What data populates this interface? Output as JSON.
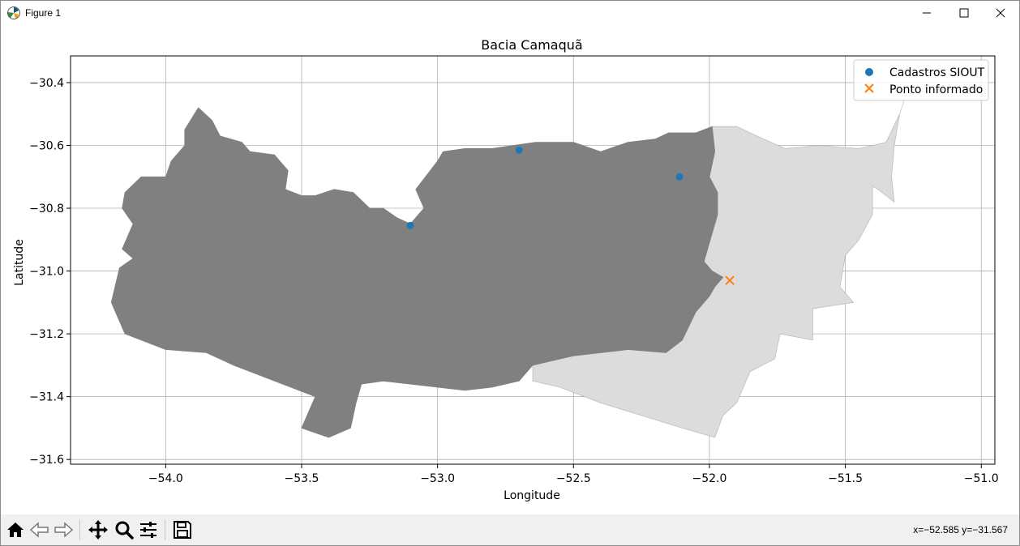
{
  "window": {
    "title": "Figure 1"
  },
  "toolbar": {
    "buttons": [
      "home-icon",
      "back-arrow-icon",
      "forward-arrow-icon",
      "pan-icon",
      "zoom-icon",
      "configure-subplots-icon",
      "save-icon"
    ],
    "coords": "x=−52.585 y=−31.567"
  },
  "chart_data": {
    "type": "scatter",
    "title": "Bacia Camaquã",
    "xlabel": "Longitude",
    "ylabel": "Latitude",
    "xlim": [
      -54.35,
      -50.95
    ],
    "ylim": [
      -31.615,
      -30.315
    ],
    "xticks": [
      -54.0,
      -53.5,
      -53.0,
      -52.5,
      -52.0,
      -51.5,
      -51.0
    ],
    "xtick_labels": [
      "−54.0",
      "−53.5",
      "−53.0",
      "−52.5",
      "−52.0",
      "−51.5",
      "−51.0"
    ],
    "yticks": [
      -30.4,
      -30.6,
      -30.8,
      -31.0,
      -31.2,
      -31.4,
      -31.6
    ],
    "ytick_labels": [
      "−30.4",
      "−30.6",
      "−30.8",
      "−31.0",
      "−31.2",
      "−31.4",
      "−31.6"
    ],
    "grid": true,
    "legend_position": "top-right",
    "colors": {
      "series1": "#1f77b4",
      "series2": "#ff7f0e",
      "basin_dark": "#808080",
      "basin_light": "#dcdcdc"
    },
    "series": [
      {
        "name": "Cadastros SIOUT",
        "marker": "circle",
        "x": [
          -53.1,
          -52.7,
          -52.11
        ],
        "y": [
          -30.855,
          -30.615,
          -30.7
        ]
      },
      {
        "name": "Ponto informado",
        "marker": "x",
        "x": [
          -51.925
        ],
        "y": [
          -31.03
        ]
      }
    ],
    "regions": [
      {
        "fill": "basin_dark",
        "outline": [
          [
            -54.2,
            -31.1
          ],
          [
            -54.17,
            -30.99
          ],
          [
            -54.12,
            -30.96
          ],
          [
            -54.16,
            -30.93
          ],
          [
            -54.12,
            -30.85
          ],
          [
            -54.16,
            -30.8
          ],
          [
            -54.15,
            -30.75
          ],
          [
            -54.09,
            -30.7
          ],
          [
            -54.0,
            -30.7
          ],
          [
            -53.98,
            -30.65
          ],
          [
            -53.93,
            -30.6
          ],
          [
            -53.93,
            -30.55
          ],
          [
            -53.88,
            -30.48
          ],
          [
            -53.83,
            -30.52
          ],
          [
            -53.8,
            -30.57
          ],
          [
            -53.72,
            -30.59
          ],
          [
            -53.69,
            -30.62
          ],
          [
            -53.6,
            -30.63
          ],
          [
            -53.55,
            -30.68
          ],
          [
            -53.56,
            -30.74
          ],
          [
            -53.5,
            -30.76
          ],
          [
            -53.45,
            -30.76
          ],
          [
            -53.38,
            -30.74
          ],
          [
            -53.31,
            -30.75
          ],
          [
            -53.25,
            -30.8
          ],
          [
            -53.2,
            -30.8
          ],
          [
            -53.15,
            -30.83
          ],
          [
            -53.1,
            -30.85
          ],
          [
            -53.05,
            -30.8
          ],
          [
            -53.08,
            -30.74
          ],
          [
            -53.0,
            -30.65
          ],
          [
            -52.98,
            -30.62
          ],
          [
            -52.9,
            -30.61
          ],
          [
            -52.8,
            -30.61
          ],
          [
            -52.72,
            -30.6
          ],
          [
            -52.64,
            -30.59
          ],
          [
            -52.5,
            -30.59
          ],
          [
            -52.4,
            -30.62
          ],
          [
            -52.3,
            -30.59
          ],
          [
            -52.2,
            -30.58
          ],
          [
            -52.15,
            -30.56
          ],
          [
            -52.05,
            -30.56
          ],
          [
            -51.99,
            -30.54
          ],
          [
            -51.98,
            -30.62
          ],
          [
            -52.0,
            -30.7
          ],
          [
            -51.97,
            -30.75
          ],
          [
            -51.97,
            -30.82
          ],
          [
            -51.99,
            -30.88
          ],
          [
            -52.02,
            -30.97
          ],
          [
            -51.99,
            -31.0
          ],
          [
            -51.95,
            -31.02
          ],
          [
            -51.98,
            -31.05
          ],
          [
            -52.0,
            -31.08
          ],
          [
            -52.05,
            -31.13
          ],
          [
            -52.1,
            -31.22
          ],
          [
            -52.16,
            -31.26
          ],
          [
            -52.3,
            -31.25
          ],
          [
            -52.5,
            -31.27
          ],
          [
            -52.65,
            -31.3
          ],
          [
            -52.7,
            -31.35
          ],
          [
            -52.8,
            -31.37
          ],
          [
            -52.9,
            -31.38
          ],
          [
            -53.0,
            -31.37
          ],
          [
            -53.1,
            -31.36
          ],
          [
            -53.2,
            -31.35
          ],
          [
            -53.28,
            -31.36
          ],
          [
            -53.3,
            -31.42
          ],
          [
            -53.32,
            -31.5
          ],
          [
            -53.4,
            -31.53
          ],
          [
            -53.5,
            -31.5
          ],
          [
            -53.45,
            -31.4
          ],
          [
            -53.6,
            -31.35
          ],
          [
            -53.75,
            -31.3
          ],
          [
            -53.85,
            -31.26
          ],
          [
            -54.0,
            -31.25
          ],
          [
            -54.15,
            -31.2
          ]
        ]
      },
      {
        "fill": "basin_light",
        "outline": [
          [
            -51.99,
            -30.54
          ],
          [
            -51.9,
            -30.54
          ],
          [
            -51.8,
            -30.58
          ],
          [
            -51.72,
            -30.61
          ],
          [
            -51.6,
            -30.6
          ],
          [
            -51.45,
            -30.61
          ],
          [
            -51.35,
            -30.59
          ],
          [
            -51.3,
            -30.5
          ],
          [
            -51.27,
            -30.42
          ],
          [
            -51.3,
            -30.5
          ],
          [
            -51.32,
            -30.6
          ],
          [
            -51.33,
            -30.7
          ],
          [
            -51.32,
            -30.78
          ],
          [
            -51.38,
            -30.74
          ],
          [
            -51.4,
            -30.73
          ],
          [
            -51.4,
            -30.82
          ],
          [
            -51.45,
            -30.9
          ],
          [
            -51.5,
            -30.95
          ],
          [
            -51.52,
            -31.05
          ],
          [
            -51.47,
            -31.1
          ],
          [
            -51.62,
            -31.12
          ],
          [
            -51.62,
            -31.22
          ],
          [
            -51.74,
            -31.2
          ],
          [
            -51.76,
            -31.28
          ],
          [
            -51.85,
            -31.32
          ],
          [
            -51.88,
            -31.38
          ],
          [
            -51.9,
            -31.42
          ],
          [
            -51.95,
            -31.46
          ],
          [
            -51.98,
            -31.53
          ],
          [
            -52.1,
            -31.5
          ],
          [
            -52.25,
            -31.46
          ],
          [
            -52.4,
            -31.42
          ],
          [
            -52.55,
            -31.37
          ],
          [
            -52.65,
            -31.35
          ],
          [
            -52.65,
            -31.3
          ],
          [
            -52.5,
            -31.27
          ],
          [
            -52.3,
            -31.25
          ],
          [
            -52.16,
            -31.26
          ],
          [
            -52.1,
            -31.22
          ],
          [
            -52.05,
            -31.13
          ],
          [
            -52.0,
            -31.08
          ],
          [
            -51.98,
            -31.05
          ],
          [
            -51.95,
            -31.02
          ],
          [
            -51.99,
            -31.0
          ],
          [
            -52.02,
            -30.97
          ],
          [
            -51.99,
            -30.88
          ],
          [
            -51.97,
            -30.82
          ],
          [
            -51.97,
            -30.75
          ],
          [
            -52.0,
            -30.7
          ],
          [
            -51.98,
            -30.62
          ]
        ]
      }
    ]
  }
}
